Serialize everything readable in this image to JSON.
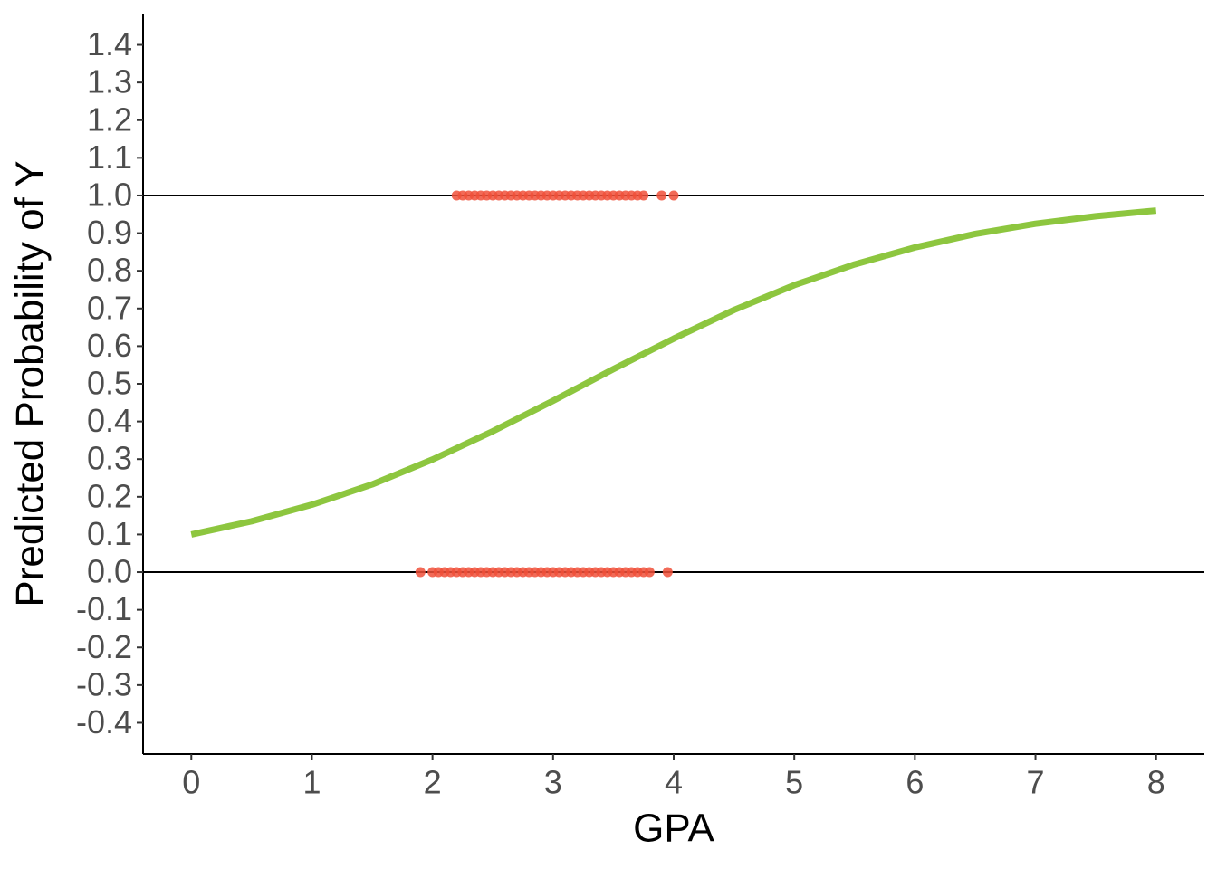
{
  "chart_data": {
    "type": "line",
    "x_label": "GPA",
    "y_label": "Predicted Probability of Y",
    "xlim": [
      -0.4,
      8.4
    ],
    "xticks": [
      0,
      1,
      2,
      3,
      4,
      5,
      6,
      7,
      8
    ],
    "ylim": [
      -0.483,
      1.483
    ],
    "yticks": [
      -0.4,
      -0.3,
      -0.2,
      -0.1,
      {
        "value": 0,
        "label": "0.0"
      },
      0.1,
      0.2,
      0.3,
      0.4,
      0.5,
      0.6,
      0.7,
      0.8,
      0.9,
      {
        "value": 1,
        "label": "1.0"
      },
      1.1,
      1.2,
      1.3,
      1.4
    ],
    "hlines": [
      0,
      1
    ],
    "curve": {
      "color": "#8dc63f",
      "x": [
        0,
        0.5,
        1,
        1.5,
        2,
        2.5,
        3,
        3.5,
        4,
        4.5,
        5,
        5.5,
        6,
        6.5,
        7,
        7.5,
        8
      ],
      "values": [
        0.1,
        0.135,
        0.179,
        0.233,
        0.299,
        0.374,
        0.455,
        0.539,
        0.62,
        0.696,
        0.762,
        0.817,
        0.862,
        0.898,
        0.925,
        0.945,
        0.96
      ]
    },
    "points": {
      "color": "#f05039",
      "x": [
        2.2,
        2.25,
        2.3,
        2.35,
        2.4,
        2.45,
        2.5,
        2.55,
        2.6,
        2.65,
        2.7,
        2.75,
        2.8,
        2.85,
        2.9,
        2.95,
        3.0,
        3.05,
        3.1,
        3.15,
        3.2,
        3.25,
        3.3,
        3.35,
        3.4,
        3.45,
        3.5,
        3.55,
        3.6,
        3.65,
        3.7,
        3.75,
        3.9,
        4.0,
        1.9,
        2.0,
        2.05,
        2.1,
        2.15,
        2.2,
        2.25,
        2.3,
        2.35,
        2.4,
        2.45,
        2.5,
        2.55,
        2.6,
        2.65,
        2.7,
        2.75,
        2.8,
        2.85,
        2.9,
        2.95,
        3.0,
        3.05,
        3.1,
        3.15,
        3.2,
        3.25,
        3.3,
        3.35,
        3.4,
        3.45,
        3.5,
        3.55,
        3.6,
        3.65,
        3.7,
        3.75,
        3.8,
        3.95
      ],
      "values": [
        1,
        1,
        1,
        1,
        1,
        1,
        1,
        1,
        1,
        1,
        1,
        1,
        1,
        1,
        1,
        1,
        1,
        1,
        1,
        1,
        1,
        1,
        1,
        1,
        1,
        1,
        1,
        1,
        1,
        1,
        1,
        1,
        1,
        1,
        0,
        0,
        0,
        0,
        0,
        0,
        0,
        0,
        0,
        0,
        0,
        0,
        0,
        0,
        0,
        0,
        0,
        0,
        0,
        0,
        0,
        0,
        0,
        0,
        0,
        0,
        0,
        0,
        0,
        0,
        0,
        0,
        0,
        0,
        0,
        0,
        0,
        0,
        0
      ]
    }
  }
}
